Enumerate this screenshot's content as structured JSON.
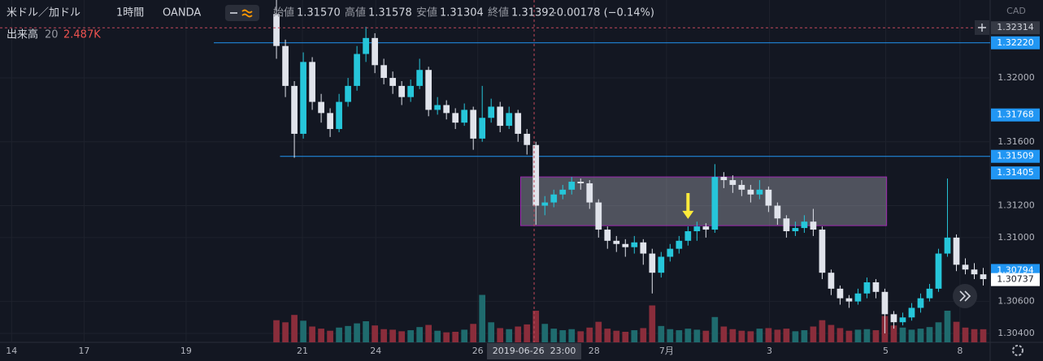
{
  "chart_data": {
    "type": "candlestick",
    "title": "米ドル／加ドル",
    "interval": "1時間",
    "source": "OANDA",
    "currency": "CAD",
    "ohlc_legend": [
      {
        "label": "始値",
        "value": "1.31570"
      },
      {
        "label": "高値",
        "value": "1.31578"
      },
      {
        "label": "安値",
        "value": "1.31304"
      },
      {
        "label": "終値",
        "value": "1.31392"
      }
    ],
    "change": "-0.00178 (−0.14%)",
    "volume_title": "出来高",
    "volume_length": 20,
    "volume_last_label": "2.487K",
    "up_color": "#26c6da",
    "down_color": "#e0e3eb",
    "volume_up_color": "#1f6b6e",
    "volume_down_color": "#8a2d3b",
    "xlim": [
      -30.9,
      79.5
    ],
    "ylim": [
      1.30344,
      1.32488
    ],
    "volume_ylim": [
      0,
      20000
    ],
    "grid": true,
    "xticks": [
      {
        "value": -29.6,
        "label": "14"
      },
      {
        "value": -21.5,
        "label": "17"
      },
      {
        "value": -10.1,
        "label": "19"
      },
      {
        "value": 2.9,
        "label": "21"
      },
      {
        "value": 11.1,
        "label": "24"
      },
      {
        "value": 22.5,
        "label": "26"
      },
      {
        "value": 35.5,
        "label": "28"
      },
      {
        "value": 43.6,
        "label": "7月"
      },
      {
        "value": 55.1,
        "label": "3"
      },
      {
        "value": 68.1,
        "label": "5"
      },
      {
        "value": 76.4,
        "label": "8"
      }
    ],
    "yticks": [
      {
        "value": 1.32,
        "label": "1.32000"
      },
      {
        "value": 1.316,
        "label": "1.31600"
      },
      {
        "value": 1.312,
        "label": "1.31200"
      },
      {
        "value": 1.31,
        "label": "1.31000"
      },
      {
        "value": 1.306,
        "label": "1.30600"
      },
      {
        "value": 1.304,
        "label": "1.30400"
      }
    ],
    "price_labels": [
      {
        "value": 1.3222,
        "label": "1.32220",
        "color": "#2196f3"
      },
      {
        "value": 1.31768,
        "label": "1.31768",
        "color": "#2196f3"
      },
      {
        "value": 1.31509,
        "label": "1.31509",
        "color": "#2196f3"
      },
      {
        "value": 1.31405,
        "label": "1.31405",
        "color": "#2196f3"
      },
      {
        "value": 1.30794,
        "label": "1.30794",
        "color": "#2196f3"
      },
      {
        "value": 1.30737,
        "label": "1.30737",
        "color": "#ffffff"
      }
    ],
    "hlines": [
      {
        "value": 1.3222,
        "start": -7.0
      },
      {
        "value": 1.31509,
        "start": 0.4
      }
    ],
    "line_color": "#2196f3",
    "box": {
      "x": [
        27.3,
        68.2
      ],
      "y": [
        1.31075,
        1.3138
      ],
      "color": "#9c27b0"
    },
    "arrow": {
      "x": 46.0,
      "y": [
        1.31279,
        1.31117
      ],
      "color": "#ffeb3b"
    },
    "crosshair": {
      "x": 28.8,
      "y": 1.32314,
      "x_label": "2019-06-26  23:00",
      "y_label": "1.32314"
    },
    "candles": [
      [
        1.324,
        1.3249,
        1.3212,
        1.322
      ],
      [
        1.322,
        1.3224,
        1.3188,
        1.3195
      ],
      [
        1.3195,
        1.3198,
        1.315,
        1.3165
      ],
      [
        1.3165,
        1.3216,
        1.3162,
        1.321
      ],
      [
        1.321,
        1.3213,
        1.318,
        1.3185
      ],
      [
        1.3185,
        1.319,
        1.3172,
        1.3178
      ],
      [
        1.3178,
        1.3181,
        1.3163,
        1.3168
      ],
      [
        1.3168,
        1.319,
        1.3166,
        1.3185
      ],
      [
        1.3185,
        1.32,
        1.3182,
        1.3195
      ],
      [
        1.3195,
        1.322,
        1.3192,
        1.3215
      ],
      [
        1.3215,
        1.3232,
        1.321,
        1.3225
      ],
      [
        1.3225,
        1.3228,
        1.3203,
        1.3208
      ],
      [
        1.3208,
        1.3212,
        1.3196,
        1.32
      ],
      [
        1.32,
        1.3204,
        1.319,
        1.3195
      ],
      [
        1.3195,
        1.3198,
        1.3183,
        1.3188
      ],
      [
        1.3188,
        1.3199,
        1.3185,
        1.3195
      ],
      [
        1.3195,
        1.3212,
        1.3193,
        1.3205
      ],
      [
        1.3205,
        1.3207,
        1.3176,
        1.318
      ],
      [
        1.318,
        1.3188,
        1.3177,
        1.3183
      ],
      [
        1.3183,
        1.3186,
        1.3174,
        1.3178
      ],
      [
        1.3178,
        1.3181,
        1.3168,
        1.3172
      ],
      [
        1.3172,
        1.3184,
        1.317,
        1.318
      ],
      [
        1.318,
        1.3182,
        1.3155,
        1.3162
      ],
      [
        1.3162,
        1.3195,
        1.316,
        1.3175
      ],
      [
        1.3175,
        1.3187,
        1.3172,
        1.3182
      ],
      [
        1.3182,
        1.3185,
        1.3166,
        1.317
      ],
      [
        1.317,
        1.3182,
        1.3168,
        1.3178
      ],
      [
        1.3178,
        1.318,
        1.316,
        1.3165
      ],
      [
        1.3165,
        1.3168,
        1.3152,
        1.3158
      ],
      [
        1.3158,
        1.316,
        1.3108,
        1.312
      ],
      [
        1.312,
        1.3126,
        1.3114,
        1.3122
      ],
      [
        1.3122,
        1.313,
        1.3119,
        1.3127
      ],
      [
        1.3127,
        1.3133,
        1.3124,
        1.313
      ],
      [
        1.313,
        1.3138,
        1.3127,
        1.3135
      ],
      [
        1.3135,
        1.3137,
        1.313,
        1.3134
      ],
      [
        1.3134,
        1.3136,
        1.3118,
        1.3122
      ],
      [
        1.3122,
        1.3124,
        1.31,
        1.3105
      ],
      [
        1.3105,
        1.3107,
        1.3093,
        1.3098
      ],
      [
        1.3098,
        1.3101,
        1.3091,
        1.3096
      ],
      [
        1.3096,
        1.3099,
        1.3088,
        1.3094
      ],
      [
        1.3094,
        1.3101,
        1.309,
        1.3097
      ],
      [
        1.3097,
        1.3099,
        1.3083,
        1.309
      ],
      [
        1.309,
        1.3093,
        1.3065,
        1.3078
      ],
      [
        1.3078,
        1.3091,
        1.3075,
        1.3088
      ],
      [
        1.3088,
        1.3096,
        1.3085,
        1.3093
      ],
      [
        1.3093,
        1.3101,
        1.309,
        1.3098
      ],
      [
        1.3098,
        1.3107,
        1.3095,
        1.3104
      ],
      [
        1.3104,
        1.311,
        1.3098,
        1.3107
      ],
      [
        1.3107,
        1.3109,
        1.31,
        1.3105
      ],
      [
        1.3105,
        1.3146,
        1.3103,
        1.3138
      ],
      [
        1.3138,
        1.3141,
        1.3131,
        1.3136
      ],
      [
        1.3136,
        1.3139,
        1.3128,
        1.3133
      ],
      [
        1.3133,
        1.3136,
        1.3126,
        1.313
      ],
      [
        1.313,
        1.3133,
        1.3122,
        1.3127
      ],
      [
        1.3127,
        1.3136,
        1.3124,
        1.313
      ],
      [
        1.313,
        1.3132,
        1.3116,
        1.312
      ],
      [
        1.312,
        1.3122,
        1.3108,
        1.3112
      ],
      [
        1.3112,
        1.3114,
        1.31,
        1.3104
      ],
      [
        1.3104,
        1.311,
        1.3101,
        1.3106
      ],
      [
        1.3106,
        1.3114,
        1.3103,
        1.311
      ],
      [
        1.311,
        1.3118,
        1.3101,
        1.3105
      ],
      [
        1.3105,
        1.3107,
        1.3074,
        1.3078
      ],
      [
        1.3078,
        1.308,
        1.3064,
        1.3068
      ],
      [
        1.3068,
        1.307,
        1.3058,
        1.3062
      ],
      [
        1.3062,
        1.3064,
        1.3056,
        1.306
      ],
      [
        1.306,
        1.3068,
        1.3058,
        1.3065
      ],
      [
        1.3065,
        1.3075,
        1.3062,
        1.3072
      ],
      [
        1.3072,
        1.3074,
        1.3062,
        1.3066
      ],
      [
        1.3066,
        1.3068,
        1.304,
        1.3052
      ],
      [
        1.3052,
        1.3054,
        1.3043,
        1.3047
      ],
      [
        1.3047,
        1.3053,
        1.3045,
        1.305
      ],
      [
        1.305,
        1.3059,
        1.3048,
        1.3056
      ],
      [
        1.3056,
        1.3065,
        1.3053,
        1.3062
      ],
      [
        1.3062,
        1.3071,
        1.306,
        1.3068
      ],
      [
        1.3068,
        1.3093,
        1.3066,
        1.309
      ],
      [
        1.309,
        1.3137,
        1.3088,
        1.31
      ],
      [
        1.31,
        1.3102,
        1.3079,
        1.3083
      ],
      [
        1.3083,
        1.3087,
        1.3077,
        1.308
      ],
      [
        1.308,
        1.3084,
        1.3074,
        1.3077
      ],
      [
        1.3077,
        1.3081,
        1.307,
        1.3074
      ]
    ],
    "volume": [
      4200,
      3800,
      5200,
      4100,
      3000,
      2600,
      2200,
      2800,
      3100,
      3600,
      4000,
      3200,
      2500,
      2400,
      2100,
      2300,
      2900,
      3300,
      2200,
      1900,
      2000,
      2400,
      3500,
      9000,
      3800,
      2700,
      2500,
      3000,
      3400,
      6000,
      3500,
      2600,
      2300,
      2500,
      2100,
      2800,
      3900,
      2600,
      2200,
      2000,
      2300,
      2700,
      7000,
      3100,
      2500,
      2300,
      2600,
      2400,
      2200,
      4800,
      3000,
      2500,
      2200,
      2100,
      2600,
      2700,
      2400,
      2600,
      2100,
      2300,
      3000,
      4200,
      3300,
      2700,
      2200,
      2400,
      2500,
      2300,
      5000,
      3200,
      2800,
      2400,
      2600,
      2900,
      3800,
      6000,
      3900,
      2800,
      2500,
      2487
    ]
  }
}
